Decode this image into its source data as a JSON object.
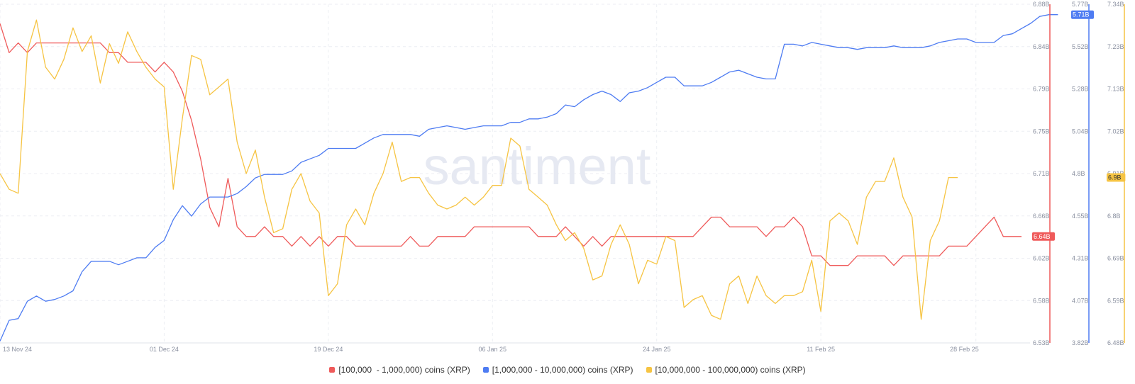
{
  "watermark": "santiment",
  "chart_data": {
    "type": "line",
    "x_tick_labels": [
      "13 Nov 24",
      "01 Dec 24",
      "19 Dec 24",
      "06 Jan 25",
      "24 Jan 25",
      "11 Feb 25",
      "28 Feb 25"
    ],
    "x_tick_index": [
      0,
      18,
      36,
      54,
      72,
      90,
      107
    ],
    "grid": true,
    "legend_position": "bottom",
    "axes": [
      {
        "id": "red",
        "ylim": [
          6.53,
          6.88
        ],
        "ticks": [
          "6.88B",
          "6.84B",
          "6.79B",
          "6.75B",
          "6.71B",
          "6.66B",
          "6.62B",
          "6.58B",
          "6.53B"
        ]
      },
      {
        "id": "blue",
        "ylim": [
          3.82,
          5.77
        ],
        "ticks": [
          "5.77B",
          "5.52B",
          "5.28B",
          "5.04B",
          "4.8B",
          "4.55B",
          "4.31B",
          "4.07B",
          "3.82B"
        ]
      },
      {
        "id": "yellow",
        "ylim": [
          6.48,
          7.34
        ],
        "ticks": [
          "7.34B",
          "7.23B",
          "7.13B",
          "7.02B",
          "6.91B",
          "6.8B",
          "6.69B",
          "6.59B",
          "6.48B"
        ]
      }
    ],
    "series": [
      {
        "name": "[100,000  - 1,000,000) coins (XRP)",
        "color": "#ef5a5a",
        "axis": "red",
        "last_label": "6.64B",
        "values": [
          6.86,
          6.83,
          6.84,
          6.83,
          6.84,
          6.84,
          6.84,
          6.84,
          6.84,
          6.84,
          6.84,
          6.84,
          6.83,
          6.83,
          6.82,
          6.82,
          6.82,
          6.81,
          6.82,
          6.81,
          6.79,
          6.76,
          6.72,
          6.67,
          6.65,
          6.7,
          6.65,
          6.64,
          6.64,
          6.65,
          6.64,
          6.64,
          6.63,
          6.64,
          6.63,
          6.64,
          6.63,
          6.64,
          6.64,
          6.63,
          6.63,
          6.63,
          6.63,
          6.63,
          6.63,
          6.64,
          6.63,
          6.63,
          6.64,
          6.64,
          6.64,
          6.64,
          6.65,
          6.65,
          6.65,
          6.65,
          6.65,
          6.65,
          6.65,
          6.64,
          6.64,
          6.64,
          6.65,
          6.64,
          6.63,
          6.64,
          6.63,
          6.64,
          6.64,
          6.64,
          6.64,
          6.64,
          6.64,
          6.64,
          6.64,
          6.64,
          6.64,
          6.65,
          6.66,
          6.66,
          6.65,
          6.65,
          6.65,
          6.65,
          6.64,
          6.65,
          6.65,
          6.66,
          6.65,
          6.62,
          6.62,
          6.61,
          6.61,
          6.61,
          6.62,
          6.62,
          6.62,
          6.62,
          6.61,
          6.62,
          6.62,
          6.62,
          6.62,
          6.62,
          6.63,
          6.63,
          6.63,
          6.64,
          6.65,
          6.66,
          6.64,
          6.64,
          6.64
        ]
      },
      {
        "name": "[1,000,000 - 10,000,000) coins (XRP)",
        "color": "#4e7cf2",
        "axis": "blue",
        "last_label": "5.71B",
        "values": [
          3.83,
          3.95,
          3.96,
          4.06,
          4.09,
          4.06,
          4.07,
          4.09,
          4.12,
          4.23,
          4.29,
          4.29,
          4.29,
          4.27,
          4.29,
          4.31,
          4.31,
          4.37,
          4.41,
          4.53,
          4.61,
          4.55,
          4.62,
          4.66,
          4.66,
          4.66,
          4.68,
          4.72,
          4.77,
          4.79,
          4.79,
          4.79,
          4.81,
          4.86,
          4.88,
          4.9,
          4.94,
          4.94,
          4.94,
          4.94,
          4.97,
          5.0,
          5.02,
          5.02,
          5.02,
          5.02,
          5.01,
          5.05,
          5.06,
          5.07,
          5.06,
          5.05,
          5.06,
          5.07,
          5.07,
          5.07,
          5.09,
          5.09,
          5.11,
          5.11,
          5.12,
          5.14,
          5.19,
          5.18,
          5.22,
          5.25,
          5.27,
          5.25,
          5.21,
          5.26,
          5.27,
          5.29,
          5.32,
          5.35,
          5.35,
          5.3,
          5.3,
          5.3,
          5.32,
          5.35,
          5.38,
          5.39,
          5.37,
          5.35,
          5.34,
          5.34,
          5.54,
          5.54,
          5.53,
          5.55,
          5.54,
          5.53,
          5.52,
          5.52,
          5.51,
          5.52,
          5.52,
          5.52,
          5.53,
          5.52,
          5.52,
          5.52,
          5.53,
          5.55,
          5.56,
          5.57,
          5.57,
          5.55,
          5.55,
          5.55,
          5.59,
          5.6,
          5.63,
          5.66,
          5.7,
          5.71,
          5.71
        ]
      },
      {
        "name": "[10,000,000 - 100,000,000) coins (XRP)",
        "color": "#f6c443",
        "axis": "yellow",
        "last_label": "6.9B",
        "values": [
          6.91,
          6.87,
          6.86,
          7.22,
          7.3,
          7.18,
          7.15,
          7.2,
          7.28,
          7.22,
          7.26,
          7.14,
          7.24,
          7.19,
          7.27,
          7.22,
          7.18,
          7.15,
          7.13,
          6.87,
          7.05,
          7.21,
          7.2,
          7.11,
          7.13,
          7.15,
          6.99,
          6.91,
          6.97,
          6.85,
          6.76,
          6.77,
          6.87,
          6.91,
          6.84,
          6.81,
          6.6,
          6.63,
          6.78,
          6.82,
          6.78,
          6.86,
          6.91,
          6.99,
          6.89,
          6.9,
          6.9,
          6.86,
          6.83,
          6.82,
          6.83,
          6.85,
          6.83,
          6.85,
          6.88,
          6.88,
          7.0,
          6.98,
          6.87,
          6.85,
          6.83,
          6.78,
          6.74,
          6.76,
          6.72,
          6.64,
          6.65,
          6.73,
          6.78,
          6.73,
          6.63,
          6.69,
          6.68,
          6.75,
          6.74,
          6.57,
          6.59,
          6.6,
          6.55,
          6.54,
          6.63,
          6.65,
          6.58,
          6.65,
          6.6,
          6.58,
          6.6,
          6.6,
          6.61,
          6.69,
          6.56,
          6.79,
          6.81,
          6.79,
          6.73,
          6.85,
          6.89,
          6.89,
          6.95,
          6.85,
          6.8,
          6.54,
          6.74,
          6.79,
          6.9,
          6.9
        ]
      }
    ]
  }
}
